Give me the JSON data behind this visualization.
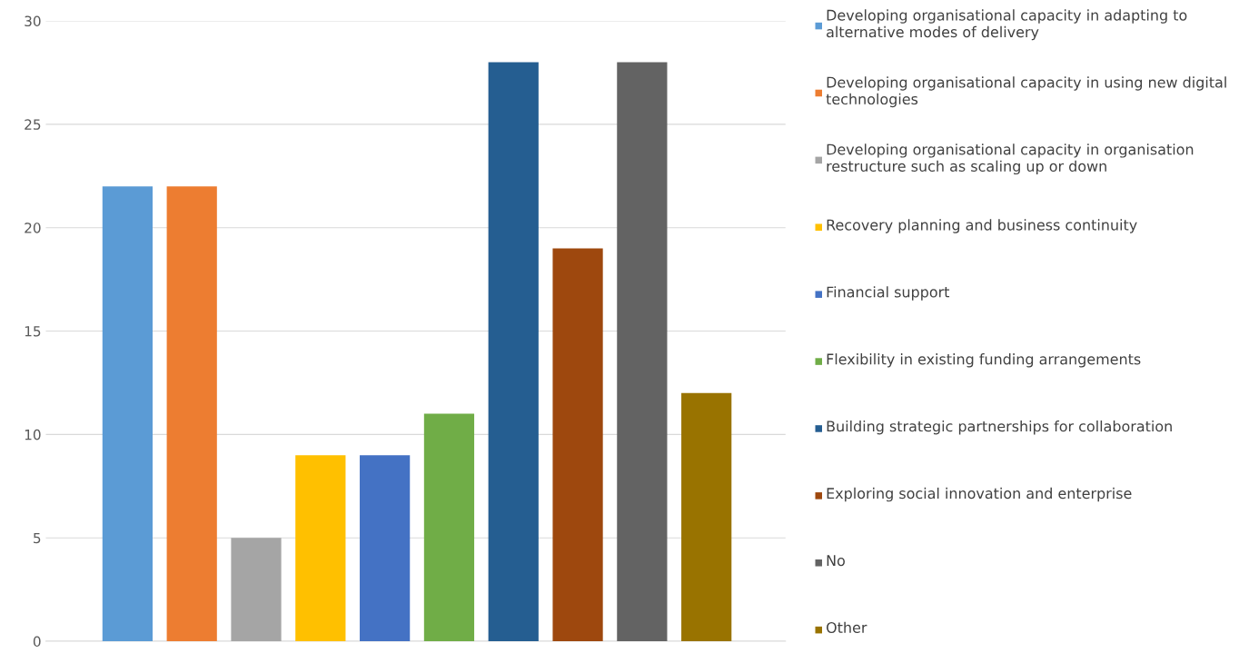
{
  "chart_data": {
    "type": "bar",
    "categories": [
      null
    ],
    "series": [
      {
        "name": "Developing organisational capacity in adapting to alternative modes of delivery",
        "color": "#5b9bd5",
        "values": [
          22
        ]
      },
      {
        "name": "Developing organisational capacity in using new digital technologies",
        "color": "#ed7d31",
        "values": [
          22
        ]
      },
      {
        "name": "Developing organisational capacity in organisation restructure such as scaling up or down",
        "color": "#a5a5a5",
        "values": [
          5
        ]
      },
      {
        "name": "Recovery planning and business continuity",
        "color": "#ffc000",
        "values": [
          9
        ]
      },
      {
        "name": "Financial support",
        "color": "#4472c4",
        "values": [
          9
        ]
      },
      {
        "name": "Flexibility in existing funding arrangements",
        "color": "#70ad47",
        "values": [
          11
        ]
      },
      {
        "name": "Building strategic partnerships for collaboration",
        "color": "#255e91",
        "values": [
          28
        ]
      },
      {
        "name": "Exploring social innovation and enterprise",
        "color": "#9e480e",
        "values": [
          19
        ]
      },
      {
        "name": "No",
        "color": "#636363",
        "values": [
          28
        ]
      },
      {
        "name": "Other",
        "color": "#997300",
        "values": [
          12
        ]
      }
    ],
    "ylim": [
      0,
      30
    ],
    "yticks": [
      0,
      5,
      10,
      15,
      20,
      25,
      30
    ],
    "grid": "y",
    "legend": "right",
    "tick_labels": "y"
  }
}
